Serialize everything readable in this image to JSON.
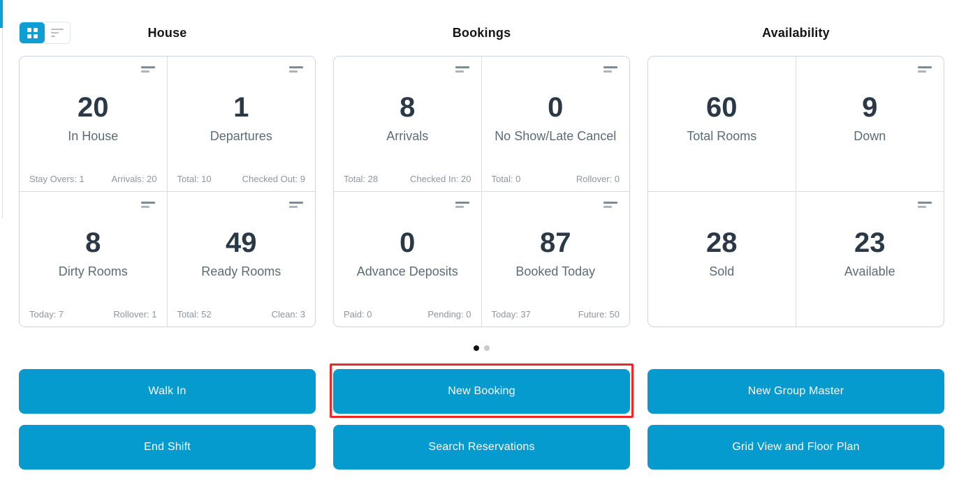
{
  "view_toggle": {
    "grid_button": {
      "icon": "grid-icon",
      "active": true
    },
    "list_button": {
      "icon": "list-icon",
      "active": false
    }
  },
  "sections": [
    {
      "title": "House",
      "cards": [
        {
          "value": "20",
          "label": "In House",
          "footer_left": "Stay Overs: 1",
          "footer_right": "Arrivals: 20",
          "menu_icon": true
        },
        {
          "value": "1",
          "label": "Departures",
          "footer_left": "Total: 10",
          "footer_right": "Checked Out: 9",
          "menu_icon": true
        },
        {
          "value": "8",
          "label": "Dirty Rooms",
          "footer_left": "Today: 7",
          "footer_right": "Rollover: 1",
          "menu_icon": true
        },
        {
          "value": "49",
          "label": "Ready Rooms",
          "footer_left": "Total: 52",
          "footer_right": "Clean: 3",
          "menu_icon": true
        }
      ]
    },
    {
      "title": "Bookings",
      "cards": [
        {
          "value": "8",
          "label": "Arrivals",
          "footer_left": "Total: 28",
          "footer_right": "Checked In: 20",
          "menu_icon": true
        },
        {
          "value": "0",
          "label": "No Show/Late Cancel",
          "footer_left": "Total: 0",
          "footer_right": "Rollover: 0",
          "menu_icon": true
        },
        {
          "value": "0",
          "label": "Advance Deposits",
          "footer_left": "Paid: 0",
          "footer_right": "Pending: 0",
          "menu_icon": true
        },
        {
          "value": "87",
          "label": "Booked Today",
          "footer_left": "Today: 37",
          "footer_right": "Future: 50",
          "menu_icon": true
        }
      ]
    },
    {
      "title": "Availability",
      "cards": [
        {
          "value": "60",
          "label": "Total Rooms",
          "footer_left": "",
          "footer_right": "",
          "menu_icon": false
        },
        {
          "value": "9",
          "label": "Down",
          "footer_left": "",
          "footer_right": "",
          "menu_icon": true
        },
        {
          "value": "28",
          "label": "Sold",
          "footer_left": "",
          "footer_right": "",
          "menu_icon": false
        },
        {
          "value": "23",
          "label": "Available",
          "footer_left": "",
          "footer_right": "",
          "menu_icon": true
        }
      ]
    }
  ],
  "pagination": {
    "count": 2,
    "active_index": 0
  },
  "actions": {
    "rows": [
      [
        {
          "label": "Walk In",
          "highlighted": false
        },
        {
          "label": "New Booking",
          "highlighted": true
        },
        {
          "label": "New Group Master",
          "highlighted": false
        }
      ],
      [
        {
          "label": "End Shift",
          "highlighted": false
        },
        {
          "label": "Search Reservations",
          "highlighted": false
        },
        {
          "label": "Grid View and Floor Plan",
          "highlighted": false
        }
      ]
    ]
  },
  "colors": {
    "accent_blue": "#059bce",
    "toggle_active_blue": "#0d9ed6",
    "stat_number": "#2b3947",
    "stat_label": "#5b6b76",
    "stat_footer": "#8d969d",
    "panel_border": "#ccd5da",
    "annotation_red": "#ee2724",
    "dot_active": "#121212",
    "dot_inactive": "#cacaca"
  }
}
